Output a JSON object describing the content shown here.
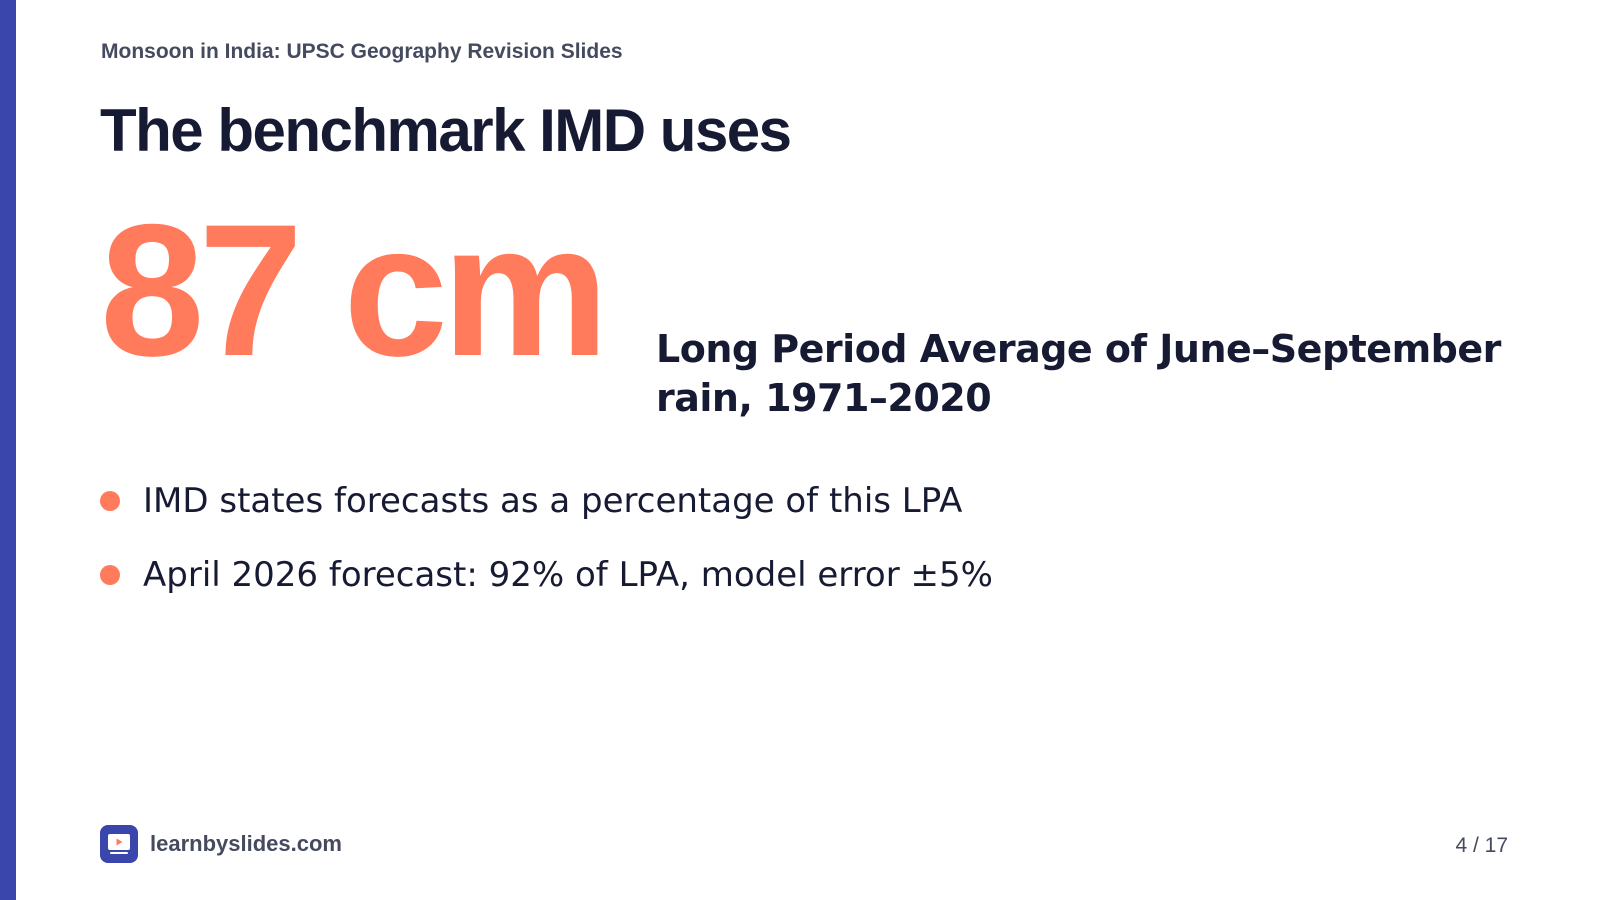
{
  "deck_title": "Monsoon in India: UPSC Geography Revision Slides",
  "slide": {
    "title": "The benchmark IMD uses",
    "stat_value": "87 cm",
    "stat_caption": "Long Period Average of June–September rain, 1971–2020",
    "bullets": [
      "IMD states forecasts as a percentage of this LPA",
      "April 2026 forecast: 92% of LPA, model error ±5%"
    ]
  },
  "footer": {
    "brand": "learnbyslides.com",
    "page_indicator": "4 / 17"
  },
  "colors": {
    "accent": "#3b46ad",
    "highlight": "#ff7b5c",
    "text": "#161a33",
    "muted": "#454a5e"
  },
  "icons": {
    "logo": "slide-play-icon",
    "bullet": "bullet-dot-icon"
  }
}
